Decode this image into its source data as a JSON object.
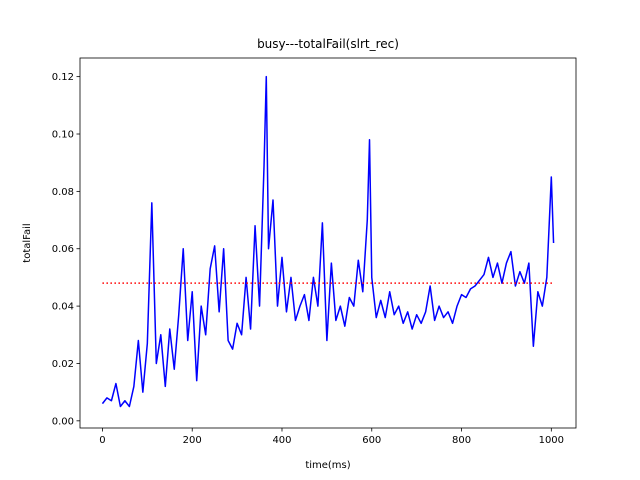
{
  "chart_data": {
    "type": "line",
    "title": "busy---totalFail(slrt_rec)",
    "x_label": "time(ms)",
    "y_label": "totalFail",
    "xlim": [
      -50,
      1055
    ],
    "ylim": [
      -0.0025,
      0.1265
    ],
    "xticks": [
      0,
      200,
      400,
      600,
      800,
      1000
    ],
    "yticks": [
      {
        "value": 0,
        "label": "0.00"
      },
      {
        "value": 0.02,
        "label": "0.02"
      },
      {
        "value": 0.04,
        "label": "0.04"
      },
      {
        "value": 0.06,
        "label": "0.06"
      },
      {
        "value": 0.08,
        "label": "0.08"
      },
      {
        "value": 0.1,
        "label": "0.10"
      },
      {
        "value": 0.12,
        "label": "0.12"
      }
    ],
    "series": [
      {
        "color": "#0000ff",
        "style": "solid",
        "x": [
          0,
          10,
          20,
          30,
          40,
          50,
          60,
          70,
          80,
          90,
          100,
          110,
          120,
          130,
          140,
          150,
          160,
          170,
          180,
          190,
          200,
          210,
          220,
          230,
          240,
          250,
          260,
          270,
          280,
          290,
          300,
          310,
          320,
          330,
          340,
          350,
          360,
          365,
          370,
          380,
          390,
          400,
          410,
          420,
          430,
          440,
          450,
          460,
          470,
          480,
          490,
          500,
          510,
          520,
          530,
          540,
          550,
          560,
          570,
          580,
          590,
          595,
          600,
          610,
          620,
          630,
          640,
          650,
          660,
          670,
          680,
          690,
          700,
          710,
          720,
          730,
          740,
          750,
          760,
          770,
          780,
          790,
          800,
          810,
          820,
          830,
          840,
          850,
          860,
          870,
          880,
          890,
          900,
          910,
          920,
          930,
          940,
          950,
          960,
          970,
          980,
          990,
          1000,
          1005
        ],
        "values": [
          0.006,
          0.008,
          0.007,
          0.013,
          0.005,
          0.007,
          0.005,
          0.012,
          0.028,
          0.01,
          0.027,
          0.076,
          0.02,
          0.03,
          0.012,
          0.032,
          0.018,
          0.037,
          0.06,
          0.028,
          0.045,
          0.014,
          0.04,
          0.03,
          0.053,
          0.061,
          0.038,
          0.06,
          0.028,
          0.025,
          0.034,
          0.03,
          0.05,
          0.032,
          0.068,
          0.04,
          0.089,
          0.12,
          0.06,
          0.077,
          0.04,
          0.057,
          0.038,
          0.05,
          0.035,
          0.04,
          0.044,
          0.035,
          0.05,
          0.04,
          0.069,
          0.028,
          0.055,
          0.035,
          0.04,
          0.033,
          0.043,
          0.04,
          0.056,
          0.045,
          0.07,
          0.098,
          0.05,
          0.036,
          0.042,
          0.036,
          0.045,
          0.037,
          0.04,
          0.034,
          0.038,
          0.032,
          0.037,
          0.034,
          0.038,
          0.047,
          0.035,
          0.04,
          0.036,
          0.038,
          0.034,
          0.04,
          0.044,
          0.043,
          0.046,
          0.047,
          0.049,
          0.051,
          0.057,
          0.05,
          0.055,
          0.048,
          0.055,
          0.059,
          0.047,
          0.052,
          0.048,
          0.055,
          0.026,
          0.045,
          0.04,
          0.05,
          0.085,
          0.062
        ]
      },
      {
        "color": "#ff0000",
        "style": "dotted",
        "x": [
          0,
          1005
        ],
        "values": [
          0.048,
          0.048
        ]
      }
    ]
  }
}
